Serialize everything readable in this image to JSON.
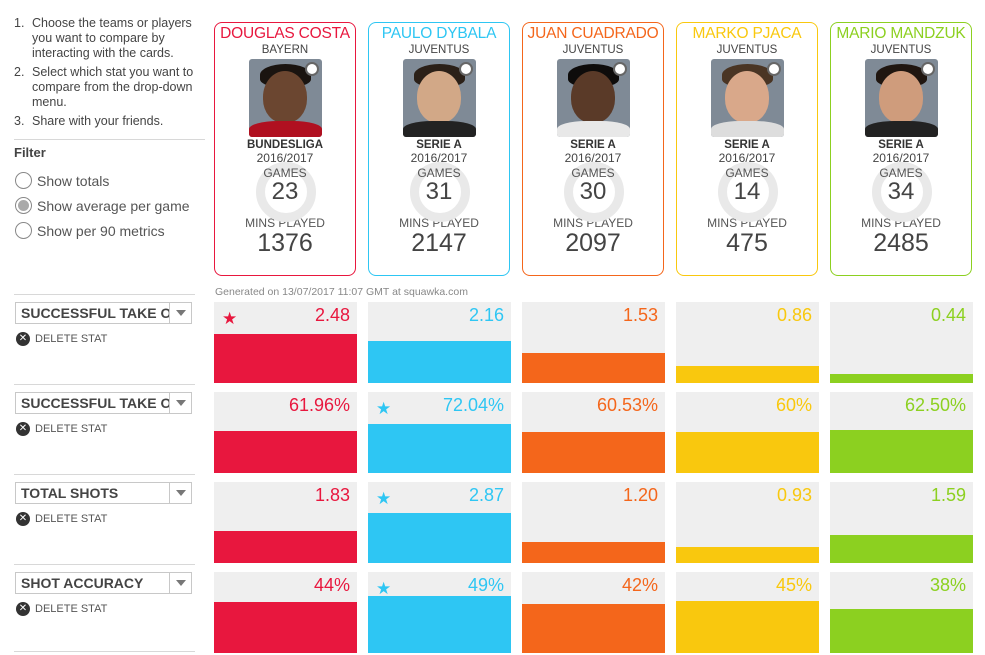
{
  "instructions": [
    {
      "num": "1.",
      "text": "Choose the teams or players you want to compare by interacting with the cards."
    },
    {
      "num": "2.",
      "text": "Select which stat you want to compare from the drop-down menu."
    },
    {
      "num": "3.",
      "text": "Share with your friends."
    }
  ],
  "filter": {
    "title": "Filter",
    "options": [
      {
        "label": "Show totals",
        "selected": false
      },
      {
        "label": "Show average per game",
        "selected": true
      },
      {
        "label": "Show per 90 metrics",
        "selected": false
      }
    ]
  },
  "players": [
    {
      "name": "DOUGLAS COSTA",
      "club": "BAYERN",
      "league": "BUNDESLIGA",
      "season": "2016/2017",
      "games_label": "GAMES",
      "games": "23",
      "mins_label": "MINS PLAYED",
      "mins": "1376",
      "color": "#e8173e",
      "hair": "#1a1410",
      "skin": "#6b4630",
      "shirt": "#b01020"
    },
    {
      "name": "PAULO DYBALA",
      "club": "JUVENTUS",
      "league": "SERIE A",
      "season": "2016/2017",
      "games_label": "GAMES",
      "games": "31",
      "mins_label": "MINS PLAYED",
      "mins": "2147",
      "color": "#2ec6f3",
      "hair": "#2b2018",
      "skin": "#d2a887",
      "shirt": "#222222"
    },
    {
      "name": "JUAN CUADRADO",
      "club": "JUVENTUS",
      "league": "SERIE A",
      "season": "2016/2017",
      "games_label": "GAMES",
      "games": "30",
      "mins_label": "MINS PLAYED",
      "mins": "2097",
      "color": "#f4661b",
      "hair": "#0e0c0b",
      "skin": "#5a3a28",
      "shirt": "#e8e8e8"
    },
    {
      "name": "MARKO PJACA",
      "club": "JUVENTUS",
      "league": "SERIE A",
      "season": "2016/2017",
      "games_label": "GAMES",
      "games": "14",
      "mins_label": "MINS PLAYED",
      "mins": "475",
      "color": "#f9c80e",
      "hair": "#4a3524",
      "skin": "#d9a88a",
      "shirt": "#dddddd"
    },
    {
      "name": "MARIO MANDZUK",
      "club": "JUVENTUS",
      "league": "SERIE A",
      "season": "2016/2017",
      "games_label": "GAMES",
      "games": "34",
      "mins_label": "MINS PLAYED",
      "mins": "2485",
      "color": "#8cd020",
      "hair": "#201610",
      "skin": "#cf9c7c",
      "shirt": "#222222"
    }
  ],
  "generated_text": "Generated on 13/07/2017 11:07 GMT at squawka.com",
  "delete_label": "DELETE STAT",
  "stats": [
    {
      "label": "SUCCESSFUL TAKE O",
      "values": [
        "2.48",
        "2.16",
        "1.53",
        "0.86",
        "0.44"
      ],
      "fill": [
        0.6,
        0.52,
        0.37,
        0.21,
        0.11
      ],
      "best": 0
    },
    {
      "label": "SUCCESSFUL TAKE O",
      "values": [
        "61.96%",
        "72.04%",
        "60.53%",
        "60%",
        "62.50%"
      ],
      "fill": [
        0.52,
        0.6,
        0.51,
        0.51,
        0.53
      ],
      "best": 1
    },
    {
      "label": "TOTAL SHOTS",
      "values": [
        "1.83",
        "2.87",
        "1.20",
        "0.93",
        "1.59"
      ],
      "fill": [
        0.4,
        0.62,
        0.26,
        0.2,
        0.35
      ],
      "best": 1
    },
    {
      "label": "SHOT ACCURACY",
      "values": [
        "44%",
        "49%",
        "42%",
        "45%",
        "38%"
      ],
      "fill": [
        0.63,
        0.7,
        0.6,
        0.64,
        0.54
      ],
      "best": 1
    }
  ]
}
